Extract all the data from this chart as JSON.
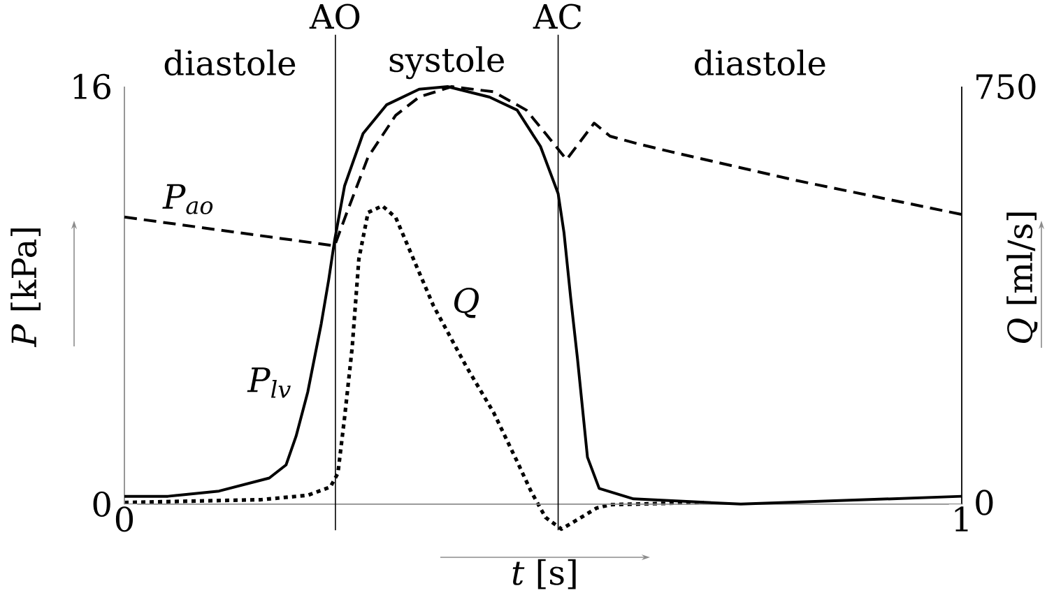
{
  "chart_data": {
    "type": "line",
    "xlabel": "*t* [s]",
    "ylabel": "*P* [kPa]",
    "y2label": "*Q* [ml/s]",
    "annotations": [
      "diastole",
      "systole",
      "diastole"
    ],
    "xlim": [
      0,
      1
    ],
    "xticks": [
      0,
      1
    ],
    "ylim": [
      -1,
      16
    ],
    "yticks": [
      0,
      16
    ],
    "y2lim": [
      -50,
      750
    ],
    "y2ticks": [
      0,
      750
    ],
    "ref_lines": [
      {
        "axis": "x",
        "value": 0.252,
        "label": "AO",
        "color": "#000000"
      },
      {
        "axis": "x",
        "value": 0.518,
        "label": "AC",
        "color": "#000000"
      }
    ],
    "series": [
      {
        "name": "P$_{ao}$",
        "color": "#000000",
        "line_style": "dashed",
        "x": [
          0,
          0.251,
          0.266,
          0.291,
          0.324,
          0.352,
          0.391,
          0.441,
          0.48,
          0.503,
          0.528,
          0.561,
          0.58,
          0.614,
          0.653,
          0.803,
          1.0
        ],
        "values": [
          11.0,
          9.9,
          11.2,
          13.3,
          14.9,
          15.6,
          16.0,
          15.8,
          15.1,
          14.2,
          13.2,
          14.6,
          14.1,
          13.8,
          13.5,
          12.4,
          11.1
        ]
      },
      {
        "name": "P$_{lv}$",
        "color": "#000000",
        "line_style": "solid",
        "x": [
          0,
          0.052,
          0.113,
          0.173,
          0.193,
          0.205,
          0.219,
          0.235,
          0.244,
          0.251,
          0.263,
          0.285,
          0.313,
          0.352,
          0.386,
          0.436,
          0.469,
          0.497,
          0.518,
          0.525,
          0.533,
          0.541,
          0.553,
          0.567,
          0.608,
          0.736,
          1.0
        ],
        "values": [
          0.3,
          0.3,
          0.5,
          1.0,
          1.5,
          2.6,
          4.3,
          6.9,
          8.6,
          10.1,
          12.2,
          14.2,
          15.3,
          15.9,
          16.0,
          15.6,
          15.1,
          13.7,
          11.9,
          10.4,
          7.9,
          5.6,
          1.8,
          0.6,
          0.2,
          0.0,
          0.3
        ]
      },
      {
        "name": "Q",
        "color": "#000000",
        "line_style": "dotted",
        "axis": "y2",
        "x": [
          0,
          0.163,
          0.219,
          0.246,
          0.255,
          0.263,
          0.272,
          0.28,
          0.291,
          0.308,
          0.324,
          0.352,
          0.369,
          0.408,
          0.441,
          0.469,
          0.486,
          0.503,
          0.522,
          0.541,
          0.564,
          0.58,
          0.692
        ],
        "values": [
          0,
          5,
          13,
          28,
          53,
          154,
          279,
          439,
          523,
          535,
          514,
          415,
          355,
          246,
          162,
          74,
          19,
          -27,
          -48,
          -31,
          -10,
          -4,
          0
        ]
      }
    ]
  }
}
